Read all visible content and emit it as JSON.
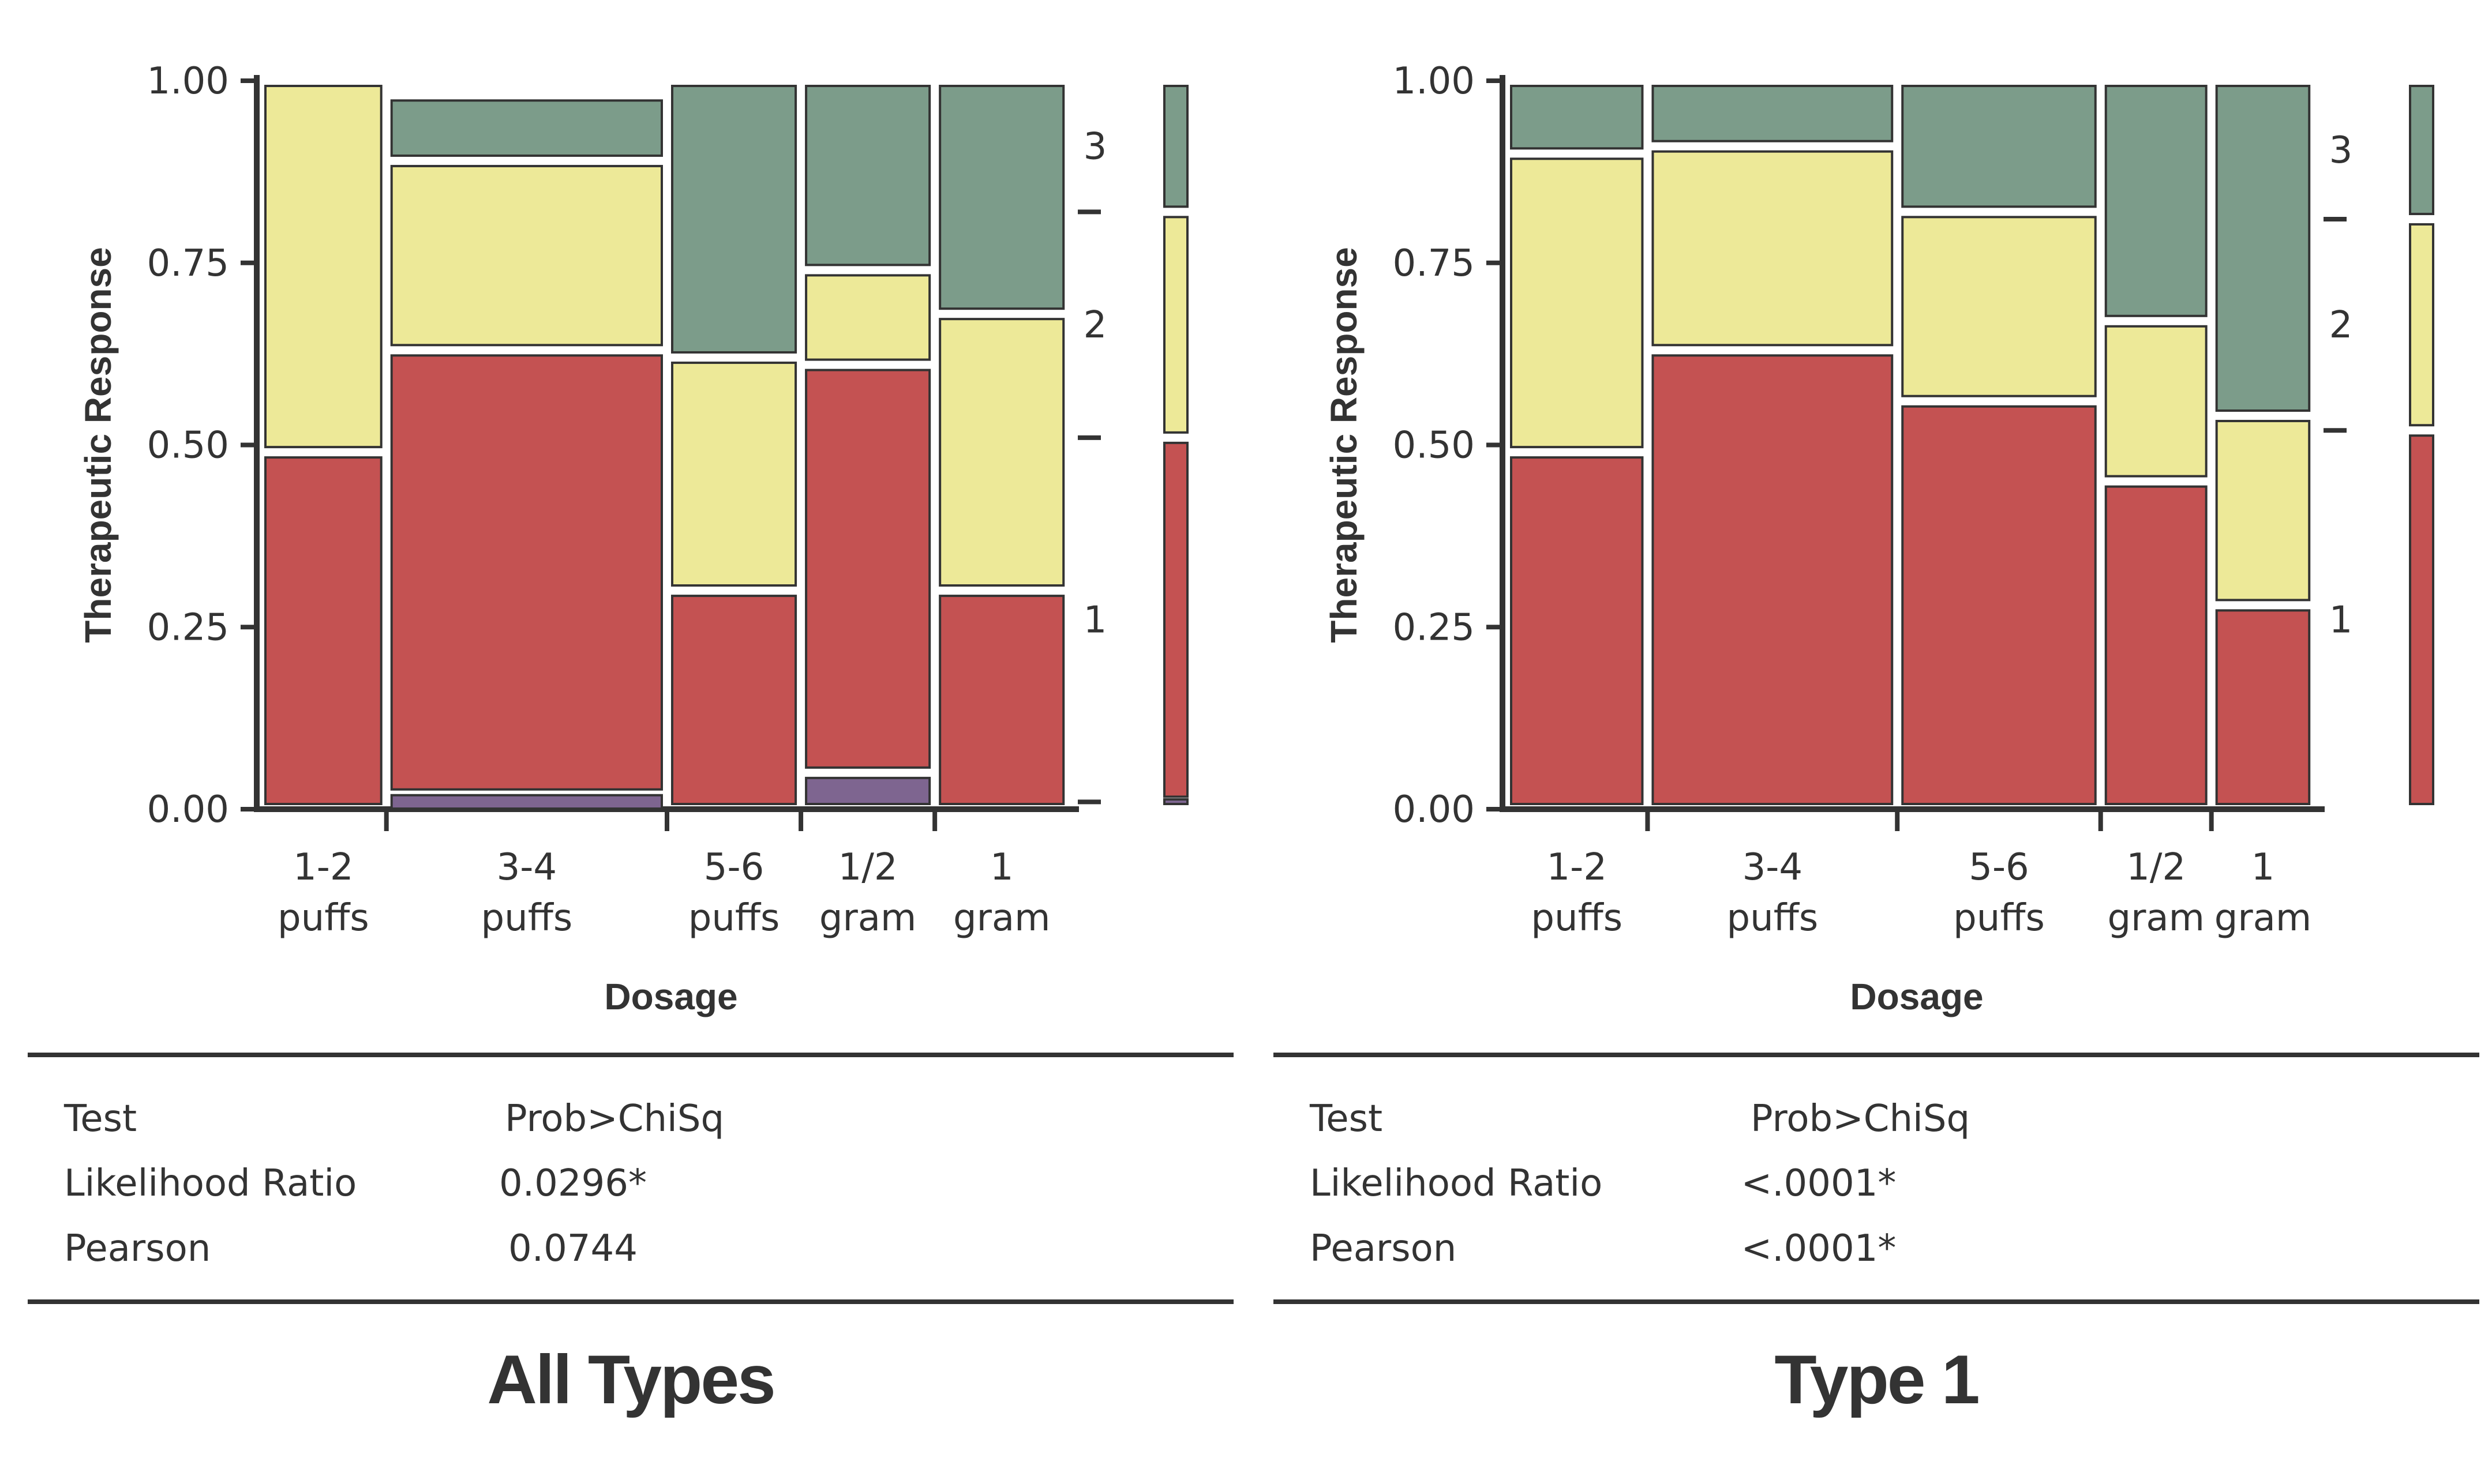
{
  "colors": {
    "level_3": "#7c9c8a",
    "level_2": "#ede998",
    "level_1": "#c45252",
    "level_other": "#7e6590",
    "outline": "#333333",
    "text": "#333333"
  },
  "chart_data": [
    {
      "type": "mosaic",
      "title": "All Types",
      "xlabel": "Dosage",
      "ylabel": "Therapeutic Response",
      "ylim": [
        0,
        1
      ],
      "y_ticks": [
        "0.00",
        "0.25",
        "0.50",
        "0.75",
        "1.00"
      ],
      "categories": [
        "1-2 puffs",
        "3-4 puffs",
        "5-6 puffs",
        "1/2 gram",
        "1 gram"
      ],
      "category_lines": [
        [
          "1-2",
          "puffs"
        ],
        [
          "3-4",
          "puffs"
        ],
        [
          "5-6",
          "puffs"
        ],
        [
          "1/2",
          "gram"
        ],
        [
          "1",
          "gram"
        ]
      ],
      "category_widths": [
        0.15,
        0.35,
        0.16,
        0.16,
        0.16
      ],
      "levels": [
        "other",
        "1",
        "2",
        "3"
      ],
      "level_labels": [
        "",
        "1",
        "2",
        "3"
      ],
      "series": [
        {
          "name": "",
          "level": "other",
          "values": [
            0.0,
            0.02,
            0.0,
            0.05,
            0.0
          ]
        },
        {
          "name": "1",
          "level": "1",
          "values": [
            0.49,
            0.61,
            0.3,
            0.56,
            0.3
          ]
        },
        {
          "name": "2",
          "level": "2",
          "values": [
            0.51,
            0.26,
            0.32,
            0.13,
            0.38
          ]
        },
        {
          "name": "3",
          "level": "3",
          "values": [
            0.0,
            0.09,
            0.38,
            0.26,
            0.32
          ]
        }
      ],
      "marginal": [
        0.01,
        0.5,
        0.31,
        0.18
      ],
      "stats": {
        "header_test": "Test",
        "header_prob": "Prob>ChiSq",
        "rows": [
          {
            "test": "Likelihood Ratio",
            "prob": "0.0296*"
          },
          {
            "test": "Pearson",
            "prob": "0.0744"
          }
        ]
      }
    },
    {
      "type": "mosaic",
      "title": "Type 1",
      "xlabel": "Dosage",
      "ylabel": "Therapeutic Response",
      "ylim": [
        0,
        1
      ],
      "y_ticks": [
        "0.00",
        "0.25",
        "0.50",
        "0.75",
        "1.00"
      ],
      "categories": [
        "1-2 puffs",
        "3-4 puffs",
        "5-6 puffs",
        "1/2 gram",
        "1 gram"
      ],
      "category_lines": [
        [
          "1-2",
          "puffs"
        ],
        [
          "3-4",
          "puffs"
        ],
        [
          "5-6",
          "puffs"
        ],
        [
          "1/2",
          "gram"
        ],
        [
          "1",
          "gram"
        ]
      ],
      "category_widths": [
        0.17,
        0.31,
        0.25,
        0.13,
        0.12
      ],
      "levels": [
        "1",
        "2",
        "3"
      ],
      "level_labels": [
        "1",
        "2",
        "3"
      ],
      "series": [
        {
          "name": "1",
          "level": "1",
          "values": [
            0.49,
            0.63,
            0.56,
            0.45,
            0.28
          ]
        },
        {
          "name": "2",
          "level": "2",
          "values": [
            0.41,
            0.28,
            0.26,
            0.22,
            0.26
          ]
        },
        {
          "name": "3",
          "level": "3",
          "values": [
            0.1,
            0.09,
            0.18,
            0.33,
            0.46
          ]
        }
      ],
      "marginal": [
        0.52,
        0.29,
        0.19
      ],
      "stats": {
        "header_test": "Test",
        "header_prob": "Prob>ChiSq",
        "rows": [
          {
            "test": "Likelihood Ratio",
            "prob": "<.0001*"
          },
          {
            "test": "Pearson",
            "prob": "<.0001*"
          }
        ]
      }
    }
  ]
}
